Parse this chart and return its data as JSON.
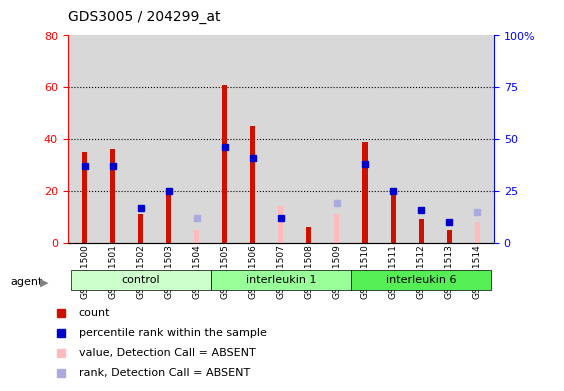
{
  "title": "GDS3005 / 204299_at",
  "samples": [
    "GSM211500",
    "GSM211501",
    "GSM211502",
    "GSM211503",
    "GSM211504",
    "GSM211505",
    "GSM211506",
    "GSM211507",
    "GSM211508",
    "GSM211509",
    "GSM211510",
    "GSM211511",
    "GSM211512",
    "GSM211513",
    "GSM211514"
  ],
  "groups": [
    {
      "label": "control",
      "start": 0,
      "end": 4
    },
    {
      "label": "interleukin 1",
      "start": 5,
      "end": 9
    },
    {
      "label": "interleukin 6",
      "start": 10,
      "end": 14
    }
  ],
  "group_colors": [
    "#ccffcc",
    "#99ff99",
    "#55ee55"
  ],
  "count": [
    35,
    36,
    11,
    19,
    null,
    61,
    45,
    null,
    6,
    null,
    39,
    19,
    9,
    5,
    null
  ],
  "percentile_rank": [
    37,
    37,
    17,
    25,
    null,
    46,
    41,
    12,
    null,
    null,
    38,
    25,
    16,
    10,
    null
  ],
  "value_absent": [
    null,
    null,
    null,
    null,
    5,
    null,
    null,
    14,
    null,
    11,
    null,
    null,
    null,
    null,
    8
  ],
  "rank_absent": [
    null,
    null,
    null,
    null,
    12,
    null,
    null,
    null,
    null,
    19,
    null,
    null,
    null,
    null,
    15
  ],
  "ylim_left": [
    0,
    80
  ],
  "yticks_left": [
    0,
    20,
    40,
    60,
    80
  ],
  "yticks_right": [
    0,
    25,
    50,
    75,
    100
  ],
  "ytick_labels_right": [
    "0",
    "25",
    "50",
    "75",
    "100%"
  ],
  "count_color": "#cc1100",
  "percentile_color": "#0000cc",
  "value_absent_color": "#ffbbbb",
  "rank_absent_color": "#aaaadd",
  "background_plot": "#d8d8d8",
  "bar_width": 0.12
}
